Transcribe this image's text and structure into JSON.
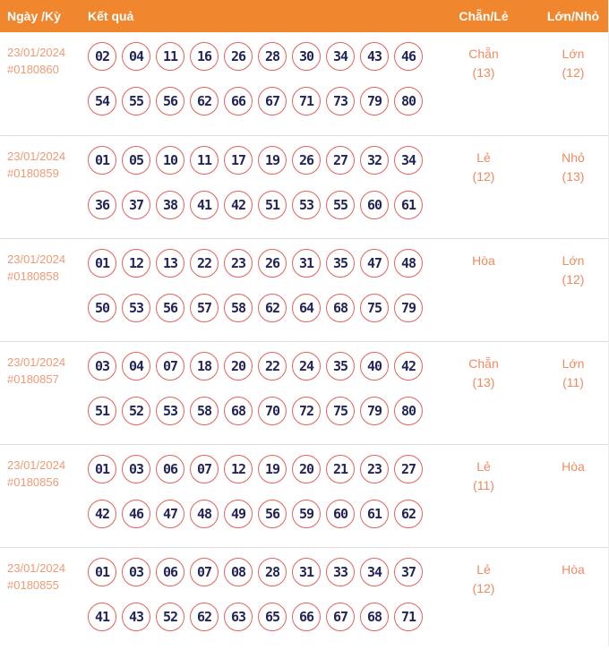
{
  "colors": {
    "header_bg": "#F0872F",
    "header_text": "#FFFFFF",
    "date_text": "#F09A76",
    "ball_border": "#E2625C",
    "ball_number": "#232558",
    "stat_text": "#EF8B60",
    "separator": "#DDDDDD"
  },
  "header": {
    "columns": [
      "Ngày /Kỳ",
      "Kết quả",
      "Chẵn/Lẻ",
      "Lớn/Nhỏ"
    ]
  },
  "rows": [
    {
      "date": "23/01/2024",
      "draw_id": "#0180860",
      "numbers_line1": [
        "02",
        "04",
        "11",
        "16",
        "26",
        "28",
        "30",
        "34",
        "43",
        "46"
      ],
      "numbers_line2": [
        "54",
        "55",
        "56",
        "62",
        "66",
        "67",
        "71",
        "73",
        "79",
        "80"
      ],
      "chan_le": {
        "label": "Chẵn",
        "count": "(13)"
      },
      "lon_nho": {
        "label": "Lớn",
        "count": "(12)"
      }
    },
    {
      "date": "23/01/2024",
      "draw_id": "#0180859",
      "numbers_line1": [
        "01",
        "05",
        "10",
        "11",
        "17",
        "19",
        "26",
        "27",
        "32",
        "34"
      ],
      "numbers_line2": [
        "36",
        "37",
        "38",
        "41",
        "42",
        "51",
        "53",
        "55",
        "60",
        "61"
      ],
      "chan_le": {
        "label": "Lẻ",
        "count": "(12)"
      },
      "lon_nho": {
        "label": "Nhỏ",
        "count": "(13)"
      }
    },
    {
      "date": "23/01/2024",
      "draw_id": "#0180858",
      "numbers_line1": [
        "01",
        "12",
        "13",
        "22",
        "23",
        "26",
        "31",
        "35",
        "47",
        "48"
      ],
      "numbers_line2": [
        "50",
        "53",
        "56",
        "57",
        "58",
        "62",
        "64",
        "68",
        "75",
        "79"
      ],
      "chan_le": {
        "label": "Hòa",
        "count": ""
      },
      "lon_nho": {
        "label": "Lớn",
        "count": "(12)"
      }
    },
    {
      "date": "23/01/2024",
      "draw_id": "#0180857",
      "numbers_line1": [
        "03",
        "04",
        "07",
        "18",
        "20",
        "22",
        "24",
        "35",
        "40",
        "42"
      ],
      "numbers_line2": [
        "51",
        "52",
        "53",
        "58",
        "68",
        "70",
        "72",
        "75",
        "79",
        "80"
      ],
      "chan_le": {
        "label": "Chẵn",
        "count": "(13)"
      },
      "lon_nho": {
        "label": "Lớn",
        "count": "(11)"
      }
    },
    {
      "date": "23/01/2024",
      "draw_id": "#0180856",
      "numbers_line1": [
        "01",
        "03",
        "06",
        "07",
        "12",
        "19",
        "20",
        "21",
        "23",
        "27"
      ],
      "numbers_line2": [
        "42",
        "46",
        "47",
        "48",
        "49",
        "56",
        "59",
        "60",
        "61",
        "62"
      ],
      "chan_le": {
        "label": "Lẻ",
        "count": "(11)"
      },
      "lon_nho": {
        "label": "Hòa",
        "count": ""
      }
    },
    {
      "date": "23/01/2024",
      "draw_id": "#0180855",
      "numbers_line1": [
        "01",
        "03",
        "06",
        "07",
        "08",
        "28",
        "31",
        "33",
        "34",
        "37"
      ],
      "numbers_line2": [
        "41",
        "43",
        "52",
        "62",
        "63",
        "65",
        "66",
        "67",
        "68",
        "71"
      ],
      "chan_le": {
        "label": "Lẻ",
        "count": "(12)"
      },
      "lon_nho": {
        "label": "Hòa",
        "count": ""
      }
    }
  ]
}
